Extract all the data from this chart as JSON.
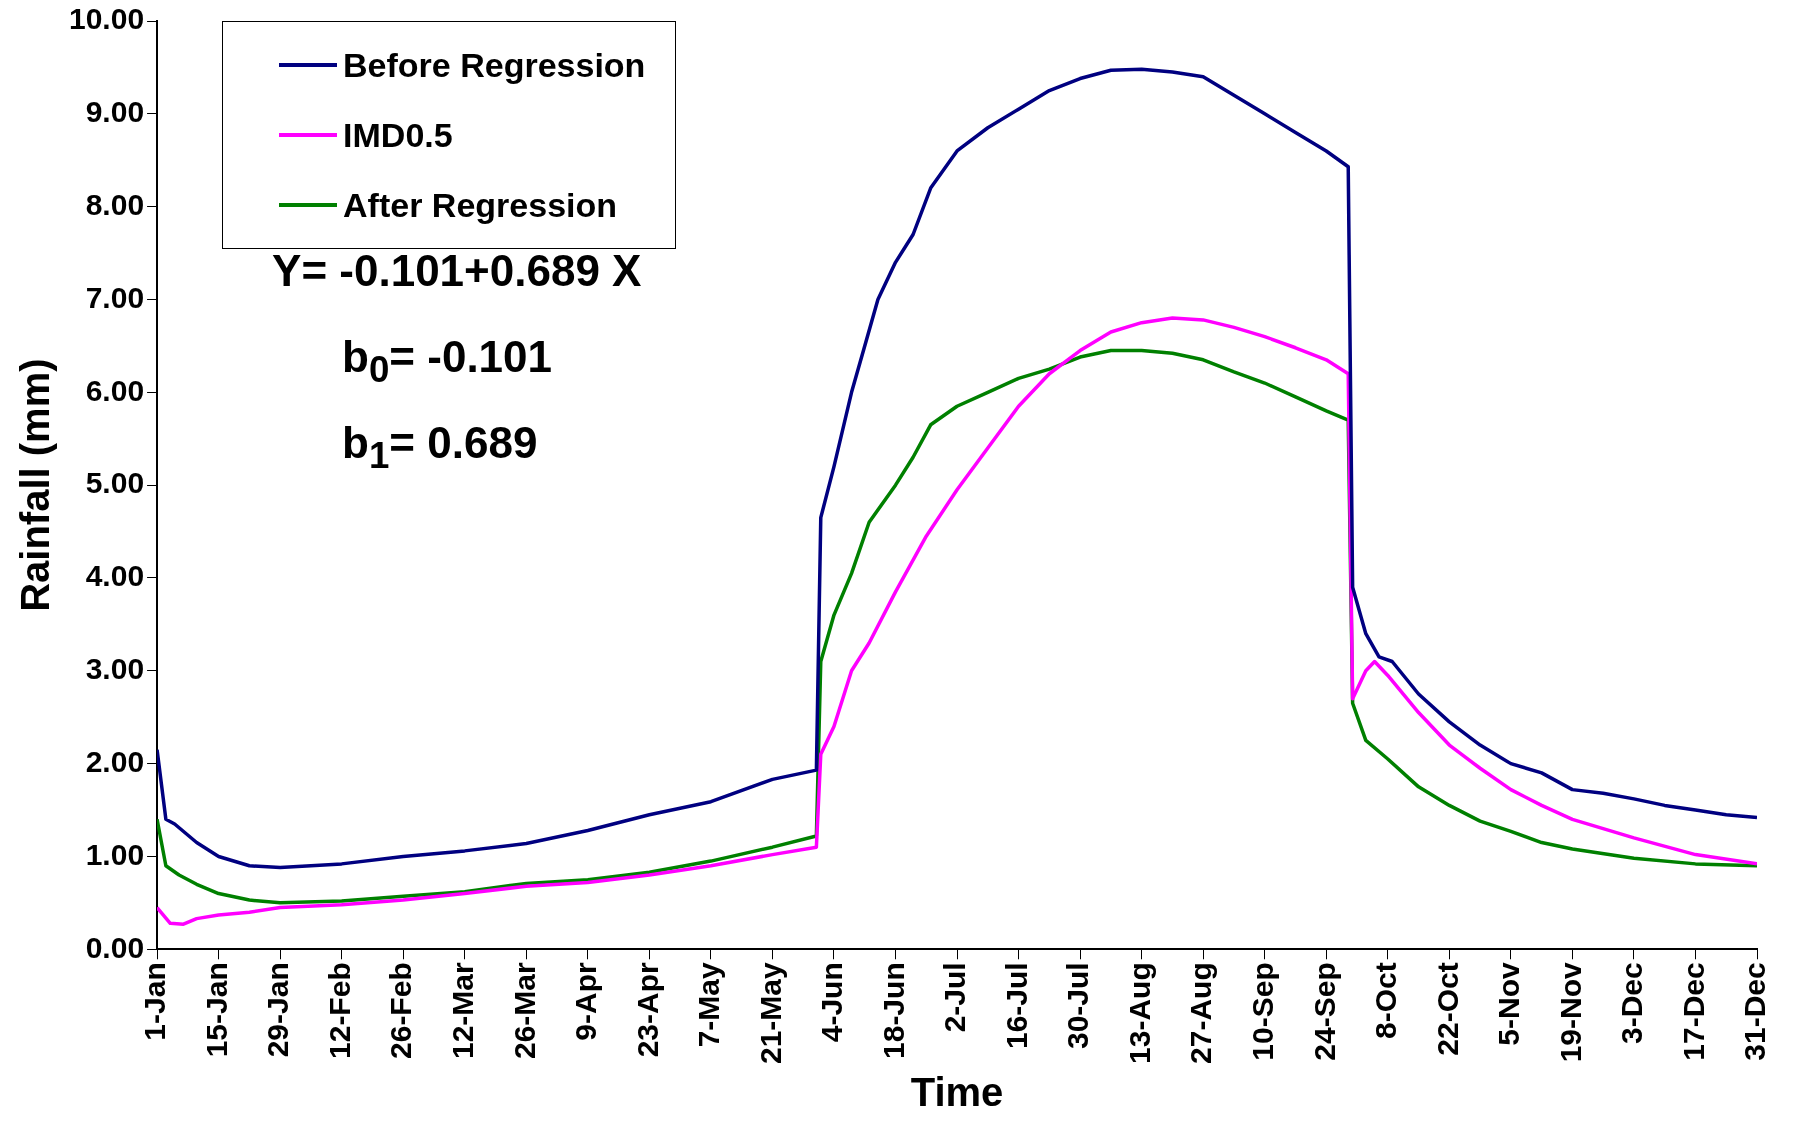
{
  "chart_data": {
    "type": "line",
    "xlabel": "Time",
    "ylabel": "Rainfall (mm)",
    "legend": "top left",
    "grid": false,
    "marker": "none",
    "line_style": "solid",
    "annotations": [
      "Y= -0.101+0.689 X",
      "b$_{0}$= -0.101",
      "b$_{1}$= 0.689"
    ],
    "xlim": [
      "--01-01",
      "--12-31"
    ],
    "xticks": [
      {
        "value": "--01-01",
        "label": "1-Jan"
      },
      {
        "value": "--01-15",
        "label": "15-Jan"
      },
      {
        "value": "--01-29",
        "label": "29-Jan"
      },
      {
        "value": "--02-12",
        "label": "12-Feb"
      },
      {
        "value": "--02-26",
        "label": "26-Feb"
      },
      {
        "value": "--03-12",
        "label": "12-Mar"
      },
      {
        "value": "--03-26",
        "label": "26-Mar"
      },
      {
        "value": "--04-09",
        "label": "9-Apr"
      },
      {
        "value": "--04-23",
        "label": "23-Apr"
      },
      {
        "value": "--05-07",
        "label": "7-May"
      },
      {
        "value": "--05-21",
        "label": "21-May"
      },
      {
        "value": "--06-04",
        "label": "4-Jun"
      },
      {
        "value": "--06-18",
        "label": "18-Jun"
      },
      {
        "value": "--07-02",
        "label": "2-Jul"
      },
      {
        "value": "--07-16",
        "label": "16-Jul"
      },
      {
        "value": "--07-30",
        "label": "30-Jul"
      },
      {
        "value": "--08-13",
        "label": "13-Aug"
      },
      {
        "value": "--08-27",
        "label": "27-Aug"
      },
      {
        "value": "--09-10",
        "label": "10-Sep"
      },
      {
        "value": "--09-24",
        "label": "24-Sep"
      },
      {
        "value": "--10-08",
        "label": "8-Oct"
      },
      {
        "value": "--10-22",
        "label": "22-Oct"
      },
      {
        "value": "--11-05",
        "label": "5-Nov"
      },
      {
        "value": "--11-19",
        "label": "19-Nov"
      },
      {
        "value": "--12-03",
        "label": "3-Dec"
      },
      {
        "value": "--12-17",
        "label": "17-Dec"
      },
      {
        "value": "--12-31",
        "label": "31-Dec"
      }
    ],
    "ylim": [
      0,
      10
    ],
    "yticks": [
      {
        "value": 0,
        "label": "0.00"
      },
      {
        "value": 1,
        "label": "1.00"
      },
      {
        "value": 2,
        "label": "2.00"
      },
      {
        "value": 3,
        "label": "3.00"
      },
      {
        "value": 4,
        "label": "4.00"
      },
      {
        "value": 5,
        "label": "5.00"
      },
      {
        "value": 6,
        "label": "6.00"
      },
      {
        "value": 7,
        "label": "7.00"
      },
      {
        "value": 8,
        "label": "8.00"
      },
      {
        "value": 9,
        "label": "9.00"
      },
      {
        "value": 10,
        "label": "10.00"
      }
    ],
    "series": [
      {
        "name": "Before Regression",
        "color": "#000080",
        "x": [
          "--01-01",
          "--01-03",
          "--01-05",
          "--01-10",
          "--01-15",
          "--01-22",
          "--01-29",
          "--02-12",
          "--02-26",
          "--03-12",
          "--03-26",
          "--04-09",
          "--04-23",
          "--05-07",
          "--05-21",
          "--05-31",
          "--06-01",
          "--06-04",
          "--06-08",
          "--06-11",
          "--06-14",
          "--06-18",
          "--06-22",
          "--06-26",
          "--07-02",
          "--07-09",
          "--07-16",
          "--07-23",
          "--07-30",
          "--08-06",
          "--08-13",
          "--08-20",
          "--08-27",
          "--09-03",
          "--09-10",
          "--09-17",
          "--09-24",
          "--09-29",
          "--09-30",
          "--10-03",
          "--10-06",
          "--10-09",
          "--10-15",
          "--10-22",
          "--10-29",
          "--11-05",
          "--11-12",
          "--11-19",
          "--11-26",
          "--12-03",
          "--12-10",
          "--12-17",
          "--12-24",
          "--12-31"
        ],
        "values": [
          2.15,
          1.4,
          1.35,
          1.15,
          1.0,
          0.9,
          0.88,
          0.92,
          1.0,
          1.06,
          1.14,
          1.28,
          1.45,
          1.59,
          1.83,
          1.93,
          4.65,
          5.2,
          6.0,
          6.5,
          7.0,
          7.4,
          7.7,
          8.2,
          8.6,
          8.85,
          9.05,
          9.25,
          9.38,
          9.47,
          9.48,
          9.45,
          9.4,
          9.2,
          9.0,
          8.8,
          8.6,
          8.43,
          3.9,
          3.4,
          3.15,
          3.1,
          2.75,
          2.45,
          2.2,
          2.0,
          1.9,
          1.72,
          1.68,
          1.62,
          1.55,
          1.5,
          1.45,
          1.42
        ]
      },
      {
        "name": "IMD0.5",
        "color": "#ff00ff",
        "x": [
          "--01-01",
          "--01-04",
          "--01-07",
          "--01-10",
          "--01-15",
          "--01-22",
          "--01-29",
          "--02-12",
          "--02-26",
          "--03-12",
          "--03-26",
          "--04-09",
          "--04-23",
          "--05-07",
          "--05-21",
          "--05-31",
          "--06-01",
          "--06-04",
          "--06-08",
          "--06-12",
          "--06-18",
          "--06-25",
          "--07-02",
          "--07-09",
          "--07-16",
          "--07-23",
          "--07-30",
          "--08-06",
          "--08-13",
          "--08-20",
          "--08-27",
          "--09-03",
          "--09-10",
          "--09-17",
          "--09-24",
          "--09-29",
          "--09-30",
          "--10-03",
          "--10-05",
          "--10-08",
          "--10-15",
          "--10-22",
          "--10-29",
          "--11-05",
          "--11-12",
          "--11-19",
          "--12-03",
          "--12-17",
          "--12-31"
        ],
        "values": [
          0.45,
          0.28,
          0.27,
          0.33,
          0.37,
          0.4,
          0.45,
          0.48,
          0.53,
          0.6,
          0.68,
          0.72,
          0.8,
          0.9,
          1.02,
          1.1,
          2.1,
          2.4,
          3.0,
          3.3,
          3.85,
          4.45,
          4.95,
          5.4,
          5.85,
          6.2,
          6.45,
          6.65,
          6.75,
          6.8,
          6.78,
          6.7,
          6.6,
          6.48,
          6.35,
          6.2,
          2.7,
          3.0,
          3.1,
          2.95,
          2.55,
          2.2,
          1.95,
          1.72,
          1.55,
          1.4,
          1.2,
          1.02,
          0.92
        ]
      },
      {
        "name": "After Regression",
        "color": "#008000",
        "x": [
          "--01-01",
          "--01-03",
          "--01-06",
          "--01-10",
          "--01-15",
          "--01-22",
          "--01-29",
          "--02-12",
          "--02-26",
          "--03-12",
          "--03-26",
          "--04-09",
          "--04-23",
          "--05-07",
          "--05-21",
          "--05-31",
          "--06-01",
          "--06-04",
          "--06-08",
          "--06-12",
          "--06-18",
          "--06-22",
          "--06-26",
          "--07-02",
          "--07-09",
          "--07-16",
          "--07-23",
          "--07-30",
          "--08-06",
          "--08-13",
          "--08-20",
          "--08-27",
          "--09-03",
          "--09-10",
          "--09-17",
          "--09-24",
          "--09-29",
          "--09-30",
          "--10-03",
          "--10-08",
          "--10-15",
          "--10-22",
          "--10-29",
          "--11-05",
          "--11-12",
          "--11-19",
          "--12-03",
          "--12-17",
          "--12-31"
        ],
        "values": [
          1.4,
          0.9,
          0.8,
          0.7,
          0.6,
          0.53,
          0.5,
          0.52,
          0.57,
          0.62,
          0.71,
          0.75,
          0.83,
          0.95,
          1.1,
          1.22,
          3.1,
          3.6,
          4.05,
          4.6,
          5.0,
          5.3,
          5.65,
          5.85,
          6.0,
          6.15,
          6.25,
          6.38,
          6.45,
          6.45,
          6.42,
          6.35,
          6.22,
          6.1,
          5.95,
          5.8,
          5.7,
          2.65,
          2.25,
          2.05,
          1.75,
          1.55,
          1.38,
          1.27,
          1.15,
          1.08,
          0.98,
          0.92,
          0.9
        ]
      }
    ]
  }
}
